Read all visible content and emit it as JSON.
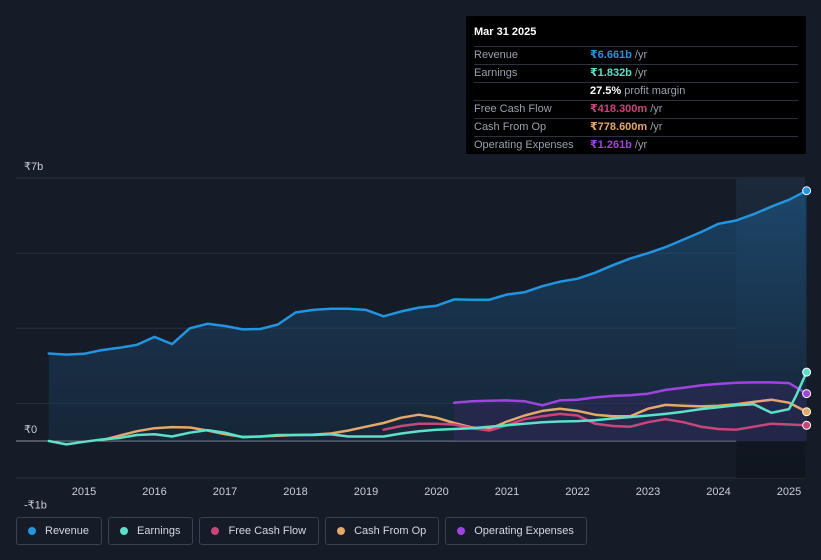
{
  "chart_data": {
    "type": "line",
    "x_ticks": [
      "2015",
      "2016",
      "2017",
      "2018",
      "2019",
      "2020",
      "2021",
      "2022",
      "2023",
      "2024",
      "2025"
    ],
    "y_labels": [
      "₹7b",
      "₹0",
      "-₹1b"
    ],
    "ylim": [
      -1,
      7
    ],
    "xlim": [
      2014.0,
      2025.35
    ],
    "series": [
      {
        "name": "Revenue",
        "color": "#2394df",
        "points": [
          [
            2014.5,
            2.33
          ],
          [
            2014.75,
            2.3
          ],
          [
            2015.0,
            2.32
          ],
          [
            2015.25,
            2.42
          ],
          [
            2015.5,
            2.48
          ],
          [
            2015.75,
            2.56
          ],
          [
            2016.0,
            2.77
          ],
          [
            2016.25,
            2.58
          ],
          [
            2016.5,
            3.0
          ],
          [
            2016.75,
            3.12
          ],
          [
            2017.0,
            3.06
          ],
          [
            2017.25,
            2.97
          ],
          [
            2017.5,
            2.98
          ],
          [
            2017.75,
            3.1
          ],
          [
            2018.0,
            3.42
          ],
          [
            2018.25,
            3.49
          ],
          [
            2018.5,
            3.52
          ],
          [
            2018.75,
            3.52
          ],
          [
            2019.0,
            3.49
          ],
          [
            2019.25,
            3.32
          ],
          [
            2019.5,
            3.45
          ],
          [
            2019.75,
            3.55
          ],
          [
            2020.0,
            3.6
          ],
          [
            2020.25,
            3.77
          ],
          [
            2020.5,
            3.76
          ],
          [
            2020.75,
            3.76
          ],
          [
            2021.0,
            3.9
          ],
          [
            2021.25,
            3.96
          ],
          [
            2021.5,
            4.12
          ],
          [
            2021.75,
            4.24
          ],
          [
            2022.0,
            4.32
          ],
          [
            2022.25,
            4.48
          ],
          [
            2022.5,
            4.68
          ],
          [
            2022.75,
            4.86
          ],
          [
            2023.0,
            5.0
          ],
          [
            2023.25,
            5.16
          ],
          [
            2023.5,
            5.36
          ],
          [
            2023.75,
            5.56
          ],
          [
            2024.0,
            5.78
          ],
          [
            2024.25,
            5.87
          ],
          [
            2024.5,
            6.04
          ],
          [
            2024.75,
            6.24
          ],
          [
            2025.0,
            6.42
          ],
          [
            2025.25,
            6.661
          ]
        ]
      },
      {
        "name": "Earnings",
        "color": "#5de0c8",
        "points": [
          [
            2014.5,
            0.0
          ],
          [
            2014.75,
            -0.09
          ],
          [
            2015.0,
            -0.02
          ],
          [
            2015.25,
            0.04
          ],
          [
            2015.5,
            0.08
          ],
          [
            2015.75,
            0.16
          ],
          [
            2016.0,
            0.18
          ],
          [
            2016.25,
            0.12
          ],
          [
            2016.5,
            0.22
          ],
          [
            2016.75,
            0.29
          ],
          [
            2017.0,
            0.22
          ],
          [
            2017.25,
            0.1
          ],
          [
            2017.5,
            0.12
          ],
          [
            2017.75,
            0.16
          ],
          [
            2018.0,
            0.16
          ],
          [
            2018.25,
            0.16
          ],
          [
            2018.5,
            0.18
          ],
          [
            2018.75,
            0.12
          ],
          [
            2019.0,
            0.12
          ],
          [
            2019.25,
            0.12
          ],
          [
            2019.5,
            0.2
          ],
          [
            2019.75,
            0.26
          ],
          [
            2020.0,
            0.3
          ],
          [
            2020.25,
            0.32
          ],
          [
            2020.5,
            0.34
          ],
          [
            2020.75,
            0.38
          ],
          [
            2021.0,
            0.42
          ],
          [
            2021.25,
            0.46
          ],
          [
            2021.5,
            0.5
          ],
          [
            2021.75,
            0.52
          ],
          [
            2022.0,
            0.53
          ],
          [
            2022.25,
            0.55
          ],
          [
            2022.5,
            0.6
          ],
          [
            2022.75,
            0.64
          ],
          [
            2023.0,
            0.68
          ],
          [
            2023.25,
            0.72
          ],
          [
            2023.5,
            0.78
          ],
          [
            2023.75,
            0.85
          ],
          [
            2024.0,
            0.9
          ],
          [
            2024.25,
            0.95
          ],
          [
            2024.5,
            0.98
          ],
          [
            2024.75,
            0.75
          ],
          [
            2025.0,
            0.85
          ],
          [
            2025.1,
            1.2
          ],
          [
            2025.25,
            1.832
          ]
        ]
      },
      {
        "name": "Free Cash Flow",
        "color": "#c9467a",
        "points": [
          [
            2019.25,
            0.3
          ],
          [
            2019.5,
            0.4
          ],
          [
            2019.75,
            0.46
          ],
          [
            2020.0,
            0.46
          ],
          [
            2020.25,
            0.44
          ],
          [
            2020.5,
            0.34
          ],
          [
            2020.75,
            0.28
          ],
          [
            2021.0,
            0.42
          ],
          [
            2021.25,
            0.58
          ],
          [
            2021.5,
            0.66
          ],
          [
            2021.75,
            0.72
          ],
          [
            2022.0,
            0.68
          ],
          [
            2022.25,
            0.46
          ],
          [
            2022.5,
            0.4
          ],
          [
            2022.75,
            0.38
          ],
          [
            2023.0,
            0.5
          ],
          [
            2023.25,
            0.58
          ],
          [
            2023.5,
            0.5
          ],
          [
            2023.75,
            0.38
          ],
          [
            2024.0,
            0.32
          ],
          [
            2024.25,
            0.3
          ],
          [
            2024.5,
            0.38
          ],
          [
            2024.75,
            0.46
          ],
          [
            2025.0,
            0.44
          ],
          [
            2025.25,
            0.4183
          ]
        ]
      },
      {
        "name": "Cash From Op",
        "color": "#e4a86a",
        "points": [
          [
            2015.25,
            0.02
          ],
          [
            2015.5,
            0.14
          ],
          [
            2015.75,
            0.26
          ],
          [
            2016.0,
            0.34
          ],
          [
            2016.25,
            0.37
          ],
          [
            2016.5,
            0.36
          ],
          [
            2016.75,
            0.28
          ],
          [
            2017.0,
            0.18
          ],
          [
            2017.25,
            0.11
          ],
          [
            2017.5,
            0.12
          ],
          [
            2017.75,
            0.14
          ],
          [
            2018.0,
            0.16
          ],
          [
            2018.25,
            0.17
          ],
          [
            2018.5,
            0.2
          ],
          [
            2018.75,
            0.28
          ],
          [
            2019.0,
            0.38
          ],
          [
            2019.25,
            0.48
          ],
          [
            2019.5,
            0.62
          ],
          [
            2019.75,
            0.7
          ],
          [
            2020.0,
            0.62
          ],
          [
            2020.25,
            0.48
          ],
          [
            2020.5,
            0.36
          ],
          [
            2020.75,
            0.32
          ],
          [
            2021.0,
            0.52
          ],
          [
            2021.25,
            0.68
          ],
          [
            2021.5,
            0.8
          ],
          [
            2021.75,
            0.86
          ],
          [
            2022.0,
            0.8
          ],
          [
            2022.25,
            0.7
          ],
          [
            2022.5,
            0.66
          ],
          [
            2022.75,
            0.66
          ],
          [
            2023.0,
            0.86
          ],
          [
            2023.25,
            0.96
          ],
          [
            2023.5,
            0.94
          ],
          [
            2023.75,
            0.92
          ],
          [
            2024.0,
            0.94
          ],
          [
            2024.25,
            0.98
          ],
          [
            2024.5,
            1.04
          ],
          [
            2024.75,
            1.1
          ],
          [
            2025.0,
            1.02
          ],
          [
            2025.25,
            0.7786
          ]
        ]
      },
      {
        "name": "Operating Expenses",
        "color": "#9d45de",
        "points": [
          [
            2020.25,
            1.02
          ],
          [
            2020.5,
            1.06
          ],
          [
            2020.75,
            1.07
          ],
          [
            2021.0,
            1.08
          ],
          [
            2021.25,
            1.06
          ],
          [
            2021.5,
            0.95
          ],
          [
            2021.75,
            1.08
          ],
          [
            2022.0,
            1.1
          ],
          [
            2022.25,
            1.16
          ],
          [
            2022.5,
            1.2
          ],
          [
            2022.75,
            1.22
          ],
          [
            2023.0,
            1.26
          ],
          [
            2023.25,
            1.36
          ],
          [
            2023.5,
            1.42
          ],
          [
            2023.75,
            1.48
          ],
          [
            2024.0,
            1.52
          ],
          [
            2024.25,
            1.55
          ],
          [
            2024.5,
            1.56
          ],
          [
            2024.75,
            1.56
          ],
          [
            2025.0,
            1.54
          ],
          [
            2025.25,
            1.261
          ]
        ]
      }
    ],
    "tooltip": {
      "date": "Mar 31 2025",
      "rows": [
        {
          "label": "Revenue",
          "value": "₹6.661b",
          "unit": "/yr",
          "color": "#2394df"
        },
        {
          "label": "Earnings",
          "value": "₹1.832b",
          "unit": "/yr",
          "color": "#5de0c8"
        },
        {
          "label": "",
          "value": "27.5%",
          "unit": "profit margin",
          "color": "#ffffff"
        },
        {
          "label": "Free Cash Flow",
          "value": "₹418.300m",
          "unit": "/yr",
          "color": "#c9467a"
        },
        {
          "label": "Cash From Op",
          "value": "₹778.600m",
          "unit": "/yr",
          "color": "#e4a86a"
        },
        {
          "label": "Operating Expenses",
          "value": "₹1.261b",
          "unit": "/yr",
          "color": "#9d45de"
        }
      ]
    },
    "legend": [
      {
        "label": "Revenue",
        "color": "#2394df"
      },
      {
        "label": "Earnings",
        "color": "#5de0c8"
      },
      {
        "label": "Free Cash Flow",
        "color": "#c9467a"
      },
      {
        "label": "Cash From Op",
        "color": "#e4a86a"
      },
      {
        "label": "Operating Expenses",
        "color": "#9d45de"
      }
    ],
    "highlight_start": 2024.25
  }
}
